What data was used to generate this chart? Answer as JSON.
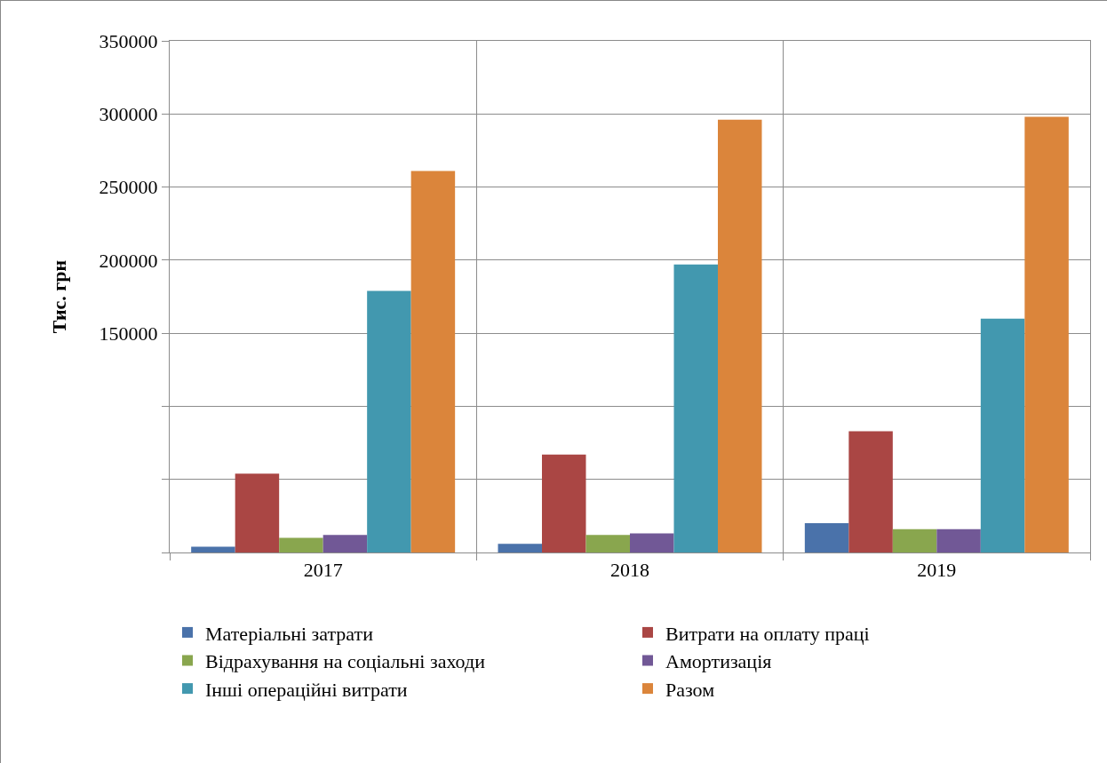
{
  "chart_data": {
    "type": "bar",
    "ylabel": "Тис. грн",
    "categories": [
      "2017",
      "2018",
      "2019"
    ],
    "series": [
      {
        "name": "Матеріальні затрати",
        "color": "#4a72aa",
        "values": [
          4000,
          6000,
          20000
        ]
      },
      {
        "name": "Витрати на оплату праці",
        "color": "#aa4644",
        "values": [
          54000,
          67000,
          83000
        ]
      },
      {
        "name": "Відрахування на соціальні заходи",
        "color": "#89a64e",
        "values": [
          10000,
          12000,
          16000
        ]
      },
      {
        "name": "Амортизація",
        "color": "#715896",
        "values": [
          12000,
          13000,
          16000
        ]
      },
      {
        "name": "Інші операційні витрати",
        "color": "#4298af",
        "values": [
          179000,
          197000,
          160000
        ]
      },
      {
        "name": "Разом",
        "color": "#db853b",
        "values": [
          261000,
          296000,
          298000
        ]
      }
    ],
    "ylim": [
      0,
      350000
    ],
    "yticks": [
      {
        "value": 0,
        "label": null
      },
      {
        "value": 50000,
        "label": null
      },
      {
        "value": 100000,
        "label": null
      },
      150000,
      200000,
      250000,
      300000,
      350000
    ],
    "grid": true,
    "legend": "bottom"
  }
}
